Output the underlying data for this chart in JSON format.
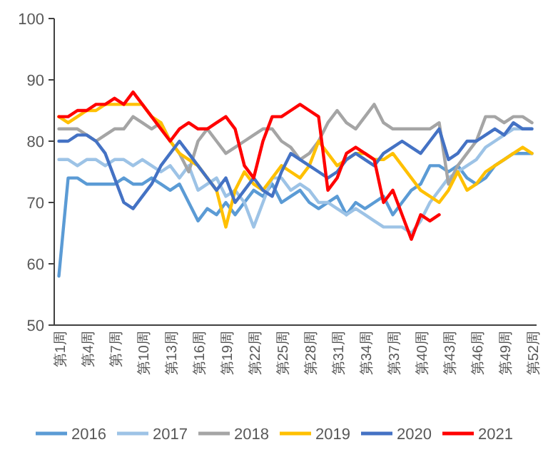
{
  "chart_data": {
    "type": "line",
    "categories": [
      "第1周",
      null,
      null,
      "第4周",
      null,
      null,
      "第7周",
      null,
      null,
      "第10周",
      null,
      null,
      "第13周",
      null,
      null,
      "第16周",
      null,
      null,
      "第19周",
      null,
      null,
      "第22周",
      null,
      null,
      "第25周",
      null,
      null,
      "第28周",
      null,
      null,
      "第31周",
      null,
      null,
      "第34周",
      null,
      null,
      "第37周",
      null,
      null,
      "第40周",
      null,
      null,
      "第43周",
      null,
      null,
      "第46周",
      null,
      null,
      "第49周",
      null,
      null,
      "第52周"
    ],
    "ylim": [
      50,
      100
    ],
    "yticks": [
      50,
      60,
      70,
      80,
      90,
      100
    ],
    "grid": false,
    "legend": "bottom",
    "marker": "none",
    "line_style": "solid",
    "series": [
      {
        "name": "2016",
        "color": "#5b9bd5",
        "values": [
          58,
          74,
          74,
          73,
          73,
          73,
          73,
          74,
          73,
          73,
          74,
          73,
          72,
          73,
          70,
          67,
          69,
          68,
          70,
          68,
          70,
          72,
          71,
          73,
          70,
          71,
          72,
          70,
          69,
          70,
          71,
          68,
          70,
          69,
          70,
          71,
          68,
          70,
          72,
          73,
          76,
          76,
          75,
          76,
          74,
          73,
          74,
          76,
          77,
          78,
          78,
          78
        ]
      },
      {
        "name": "2017",
        "color": "#9dc3e6",
        "values": [
          77,
          77,
          76,
          77,
          77,
          76,
          77,
          77,
          76,
          77,
          76,
          75,
          76,
          74,
          76,
          72,
          73,
          74,
          71,
          72,
          70,
          66,
          70,
          74,
          74,
          72,
          73,
          72,
          70,
          70,
          69,
          68,
          69,
          68,
          67,
          66,
          66,
          66,
          65,
          67,
          70,
          72,
          74,
          75,
          76,
          77,
          79,
          80,
          81,
          82,
          82,
          82
        ]
      },
      {
        "name": "2018",
        "color": "#a5a5a5",
        "values": [
          82,
          82,
          82,
          81,
          80,
          81,
          82,
          82,
          84,
          83,
          82,
          83,
          80,
          78,
          75,
          80,
          82,
          80,
          78,
          79,
          80,
          81,
          82,
          82,
          80,
          79,
          77,
          78,
          80,
          83,
          85,
          83,
          82,
          84,
          86,
          83,
          82,
          82,
          82,
          82,
          82,
          83,
          73,
          76,
          78,
          80,
          84,
          84,
          83,
          84,
          84,
          83
        ]
      },
      {
        "name": "2019",
        "color": "#ffc000",
        "values": [
          84,
          83,
          84,
          85,
          85,
          86,
          86,
          86,
          86,
          86,
          84,
          83,
          80,
          78,
          77,
          76,
          74,
          72,
          66,
          72,
          75,
          73,
          72,
          74,
          76,
          75,
          74,
          76,
          80,
          78,
          76,
          77,
          78,
          78,
          77,
          77,
          78,
          76,
          74,
          72,
          71,
          70,
          72,
          75,
          72,
          73,
          75,
          76,
          77,
          78,
          79,
          78
        ]
      },
      {
        "name": "2020",
        "color": "#4472c4",
        "values": [
          80,
          80,
          81,
          81,
          80,
          78,
          74,
          70,
          69,
          71,
          73,
          76,
          78,
          80,
          78,
          76,
          74,
          72,
          74,
          70,
          72,
          74,
          72,
          71,
          75,
          78,
          77,
          76,
          75,
          74,
          75,
          77,
          78,
          77,
          76,
          78,
          79,
          80,
          79,
          78,
          80,
          82,
          77,
          78,
          80,
          80,
          81,
          82,
          81,
          83,
          82,
          82
        ]
      },
      {
        "name": "2021",
        "color": "#ff0000",
        "values": [
          84,
          84,
          85,
          85,
          86,
          86,
          87,
          86,
          88,
          86,
          84,
          82,
          80,
          82,
          83,
          82,
          82,
          83,
          84,
          82,
          76,
          74,
          80,
          84,
          84,
          85,
          86,
          85,
          84,
          72,
          74,
          78,
          79,
          78,
          77,
          70,
          72,
          68,
          64,
          68,
          67,
          68,
          null,
          null,
          null,
          null,
          null,
          null,
          null,
          null,
          null,
          null
        ]
      }
    ]
  }
}
